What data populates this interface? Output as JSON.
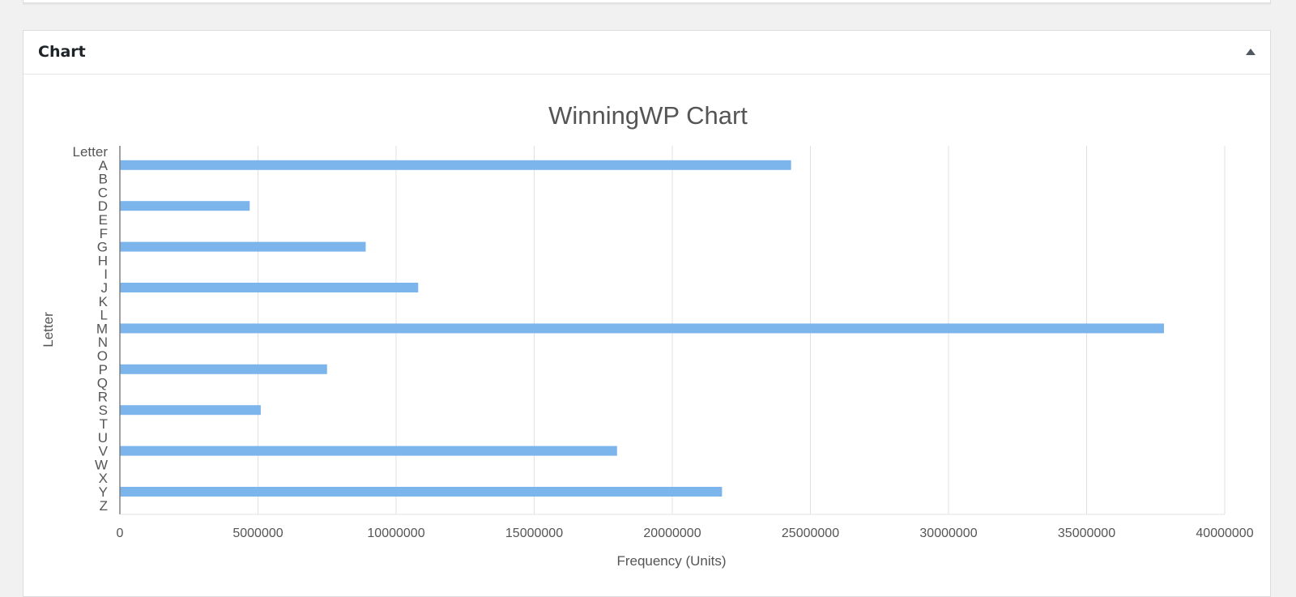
{
  "metabox": {
    "title": "Chart",
    "toggle_icon": "triangle-up-icon"
  },
  "colors": {
    "bar": "#7cb5ec",
    "grid": "#e0e0e0",
    "axis": "#808080",
    "text": "#555555"
  },
  "chart_data": {
    "type": "bar",
    "orientation": "horizontal",
    "title": "WinningWP Chart",
    "xlabel": "Frequency (Units)",
    "ylabel": "Letter",
    "xlim": [
      0,
      40000000
    ],
    "x_ticks": [
      "0",
      "5000000",
      "10000000",
      "15000000",
      "20000000",
      "25000000",
      "30000000",
      "35000000",
      "40000000"
    ],
    "grid": true,
    "legend": "none",
    "categories": [
      "Letter",
      "A",
      "B",
      "C",
      "D",
      "E",
      "F",
      "G",
      "H",
      "I",
      "J",
      "K",
      "L",
      "M",
      "N",
      "O",
      "P",
      "Q",
      "R",
      "S",
      "T",
      "U",
      "V",
      "W",
      "X",
      "Y",
      "Z"
    ],
    "values": [
      null,
      24300000,
      null,
      null,
      4700000,
      null,
      null,
      8900000,
      null,
      null,
      10800000,
      null,
      null,
      37800000,
      null,
      null,
      7500000,
      null,
      null,
      5100000,
      null,
      null,
      18000000,
      null,
      null,
      21800000,
      null
    ]
  }
}
